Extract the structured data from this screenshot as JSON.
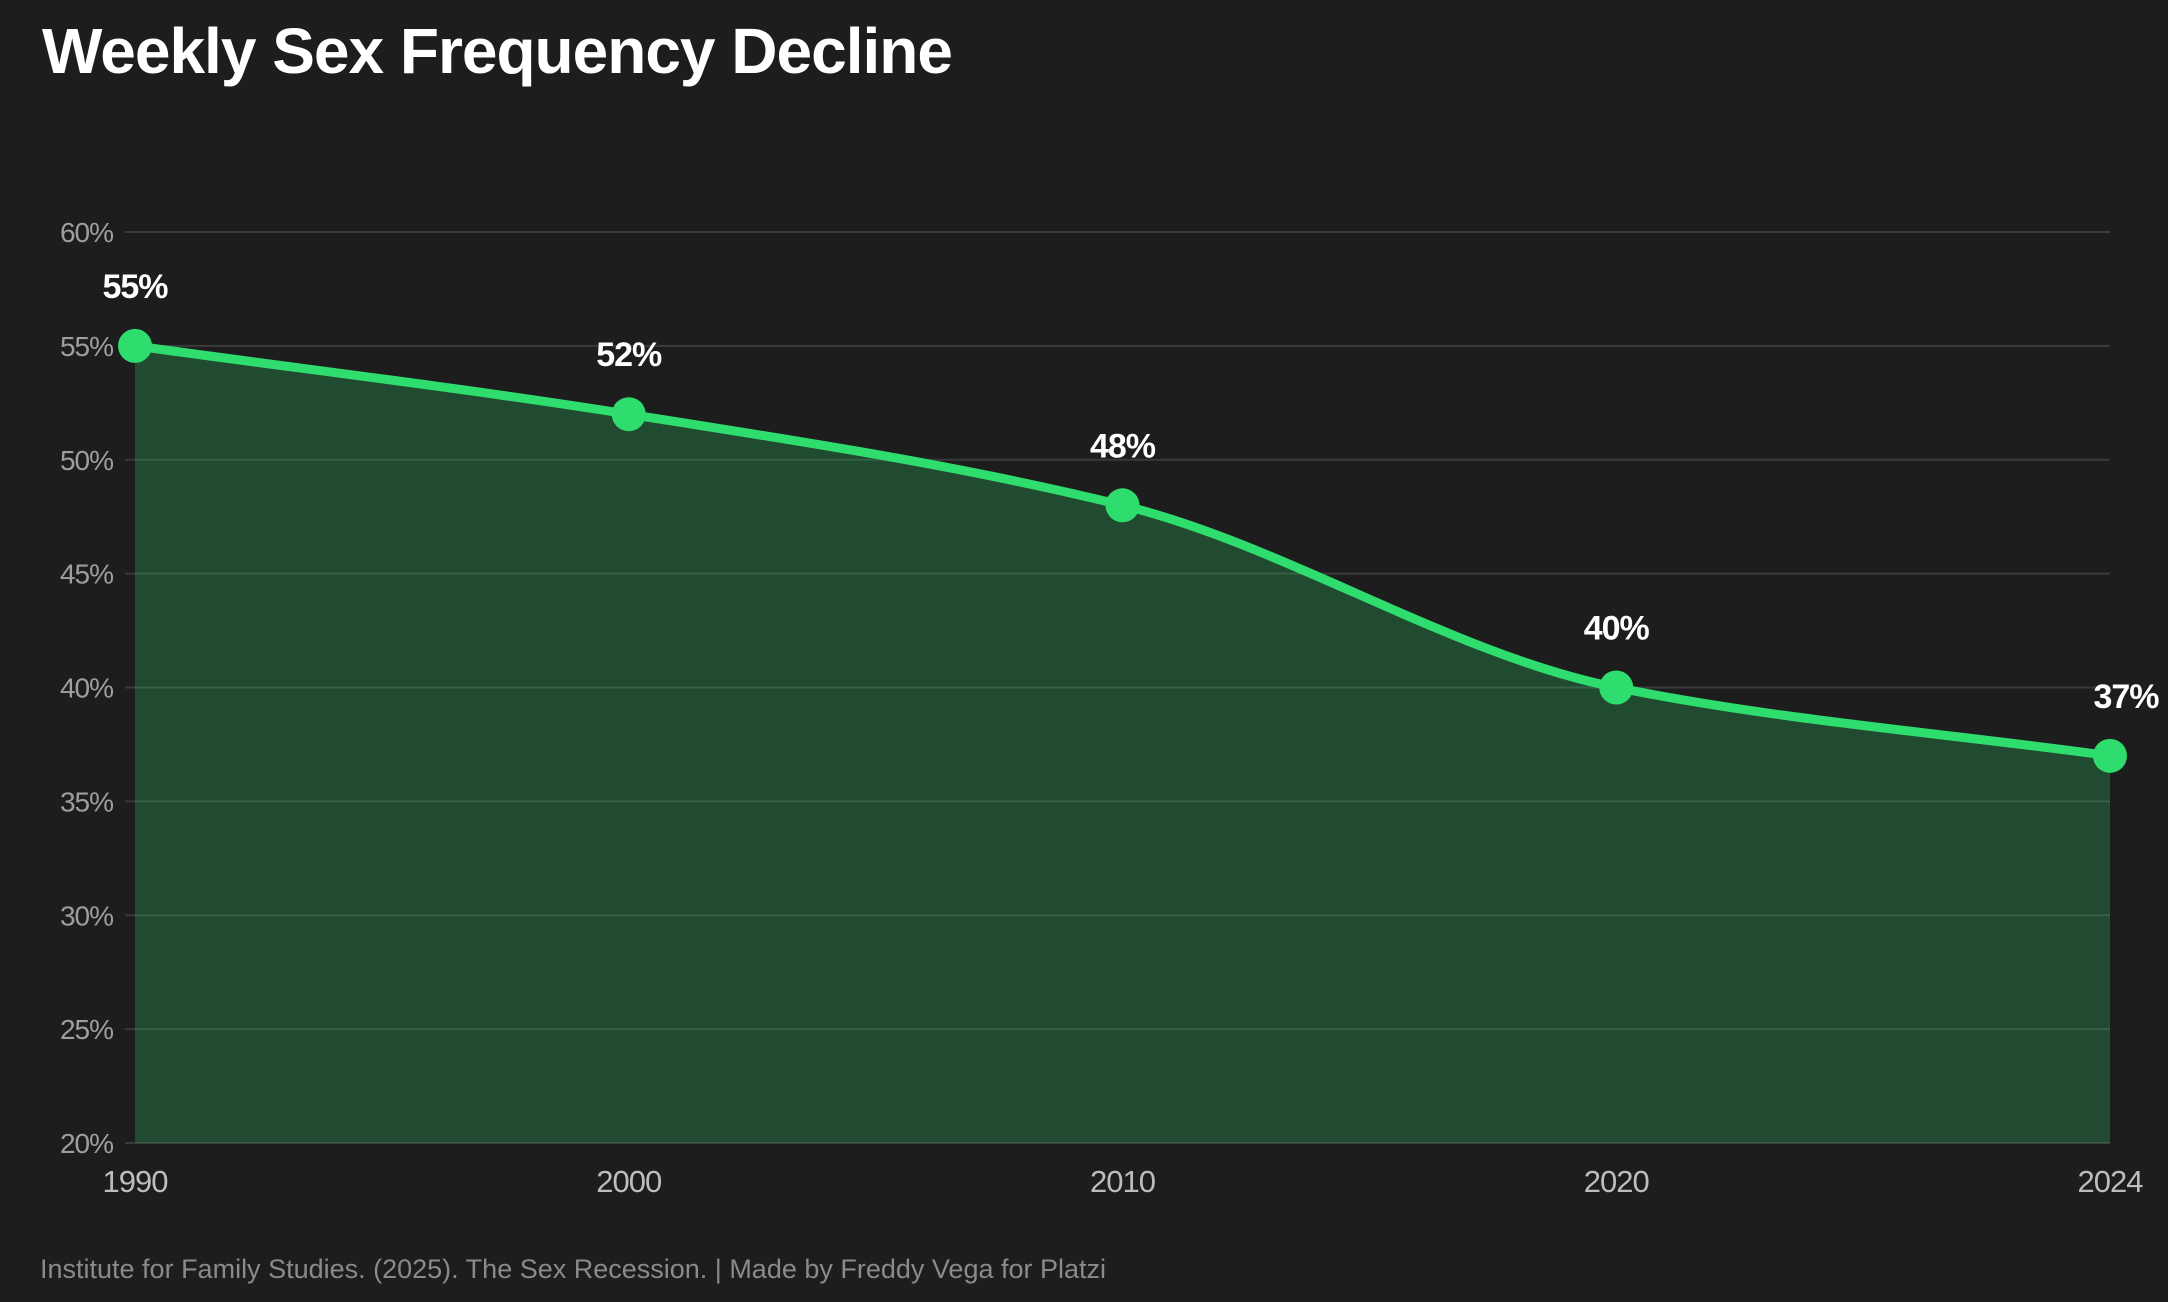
{
  "header": {
    "title": "Weekly Sex Frequency Decline"
  },
  "footer": {
    "attribution": "Institute for Family Studies. (2025). The Sex Recession. | Made by Freddy Vega for Platzi"
  },
  "chart_data": {
    "type": "area",
    "title": "Weekly Sex Frequency Decline",
    "categories": [
      "1990",
      "2000",
      "2010",
      "2020",
      "2024"
    ],
    "values": [
      55,
      52,
      48,
      40,
      37
    ],
    "point_labels": [
      "55%",
      "52%",
      "48%",
      "40%",
      "37%"
    ],
    "y_ticks": [
      60,
      55,
      50,
      45,
      40,
      35,
      30,
      25,
      20
    ],
    "y_tick_labels": [
      "60%",
      "55%",
      "50%",
      "45%",
      "40%",
      "35%",
      "30%",
      "25%",
      "20%"
    ],
    "ylim": [
      20,
      60
    ],
    "xlabel": "",
    "ylabel": "",
    "grid": true,
    "legend": "none",
    "curve": "monotone",
    "x_spacing": "categorical-equal",
    "colors": {
      "background": "#1d1d1d",
      "line": "#2edd6e",
      "point": "#2edd6e",
      "area": "rgba(46,221,110,0.24)",
      "grid": "rgba(255,255,255,0.13)",
      "title_text": "#ffffff",
      "point_label_text": "#ffffff",
      "y_tick_text": "#9e9e9e",
      "x_tick_text": "#bdbdbd",
      "footer_text": "#8a8a8a"
    }
  }
}
